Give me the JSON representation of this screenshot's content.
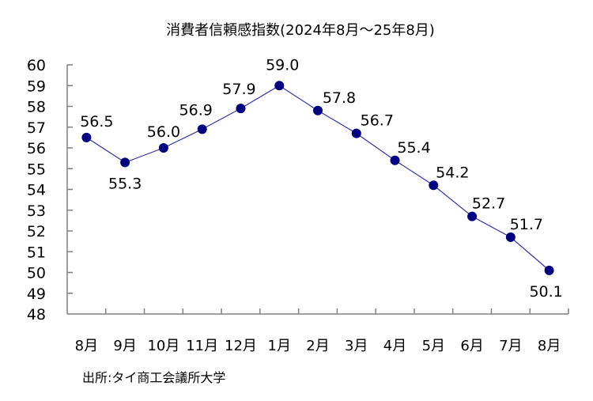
{
  "chart_data": {
    "type": "line",
    "title": "消費者信頼感指数(2024年8月～25年8月)",
    "categories": [
      "8月",
      "9月",
      "10月",
      "11月",
      "12月",
      "1月",
      "2月",
      "3月",
      "4月",
      "5月",
      "6月",
      "7月",
      "8月"
    ],
    "series": [
      {
        "values": [
          56.5,
          55.3,
          56.0,
          56.9,
          57.9,
          59.0,
          57.8,
          56.7,
          55.4,
          54.2,
          52.7,
          51.7,
          50.1
        ]
      }
    ],
    "data_labels": [
      "56.5",
      "55.3",
      "56.0",
      "56.9",
      "57.9",
      "59.0",
      "57.8",
      "56.7",
      "55.4",
      "54.2",
      "52.7",
      "51.7",
      "50.1"
    ],
    "ylim": [
      48,
      60
    ],
    "yticks": [
      48,
      49,
      50,
      51,
      52,
      53,
      54,
      55,
      56,
      57,
      58,
      59,
      60
    ],
    "xlabel": "",
    "ylabel": "",
    "grid": false,
    "legend": "none",
    "source": "出所:タイ商工会議所大学",
    "colors": {
      "line": "#3333aa",
      "marker": "#000080",
      "axis": "#808080"
    }
  }
}
